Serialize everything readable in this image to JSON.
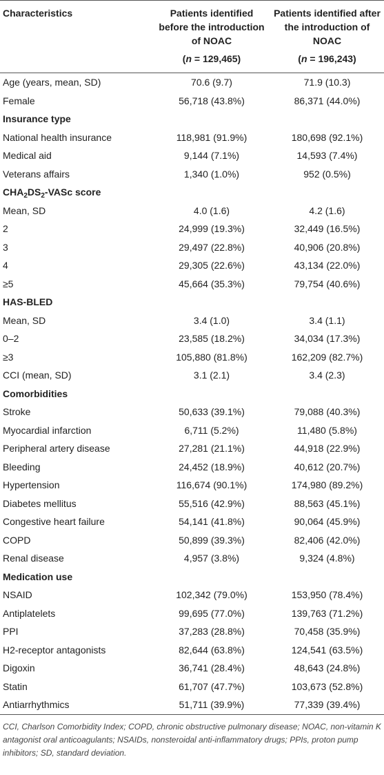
{
  "table": {
    "header": {
      "characteristics": "Characteristics",
      "before": {
        "title": "Patients identified before the introduction of NOAC",
        "n_open": "(",
        "n_var": "n",
        "n_rest": " = 129,465)"
      },
      "after": {
        "title": "Patients identified after the introduction of NOAC",
        "n_open": "(",
        "n_var": "n",
        "n_rest": " = 196,243)"
      }
    },
    "rows": [
      {
        "label": "Age (years, mean, SD)",
        "before": "70.6 (9.7)",
        "after": "71.9 (10.3)"
      },
      {
        "label": "Female",
        "before": "56,718 (43.8%)",
        "after": "86,371 (44.0%)"
      },
      {
        "section": "Insurance type"
      },
      {
        "label": "National health insurance",
        "before": "118,981 (91.9%)",
        "after": "180,698 (92.1%)"
      },
      {
        "label": "Medical aid",
        "before": "9,144 (7.1%)",
        "after": "14,593 (7.4%)"
      },
      {
        "label": "Veterans affairs",
        "before": "1,340 (1.0%)",
        "after": "952 (0.5%)"
      },
      {
        "section_parts": [
          "CHA",
          "2",
          "DS",
          "2",
          "-VASc score"
        ]
      },
      {
        "label": "Mean, SD",
        "before": "4.0 (1.6)",
        "after": "4.2 (1.6)"
      },
      {
        "label": "2",
        "before": "24,999 (19.3%)",
        "after": "32,449 (16.5%)"
      },
      {
        "label": "3",
        "before": "29,497 (22.8%)",
        "after": "40,906 (20.8%)"
      },
      {
        "label": "4",
        "before": "29,305 (22.6%)",
        "after": "43,134 (22.0%)"
      },
      {
        "label": "≥5",
        "before": "45,664 (35.3%)",
        "after": "79,754 (40.6%)"
      },
      {
        "section": "HAS-BLED"
      },
      {
        "label": "Mean, SD",
        "before": "3.4 (1.0)",
        "after": "3.4 (1.1)"
      },
      {
        "label": "0–2",
        "before": "23,585 (18.2%)",
        "after": "34,034 (17.3%)"
      },
      {
        "label": "≥3",
        "before": "105,880 (81.8%)",
        "after": "162,209 (82.7%)"
      },
      {
        "label": "CCI (mean, SD)",
        "before": "3.1 (2.1)",
        "after": "3.4 (2.3)"
      },
      {
        "section": "Comorbidities"
      },
      {
        "label": "Stroke",
        "before": "50,633 (39.1%)",
        "after": "79,088 (40.3%)"
      },
      {
        "label": "Myocardial infarction",
        "before": "6,711 (5.2%)",
        "after": "11,480 (5.8%)"
      },
      {
        "label": "Peripheral artery disease",
        "before": "27,281 (21.1%)",
        "after": "44,918 (22.9%)"
      },
      {
        "label": "Bleeding",
        "before": "24,452 (18.9%)",
        "after": "40,612 (20.7%)"
      },
      {
        "label": "Hypertension",
        "before": "116,674 (90.1%)",
        "after": "174,980 (89.2%)"
      },
      {
        "label": "Diabetes mellitus",
        "before": "55,516 (42.9%)",
        "after": "88,563 (45.1%)"
      },
      {
        "label": "Congestive heart failure",
        "before": "54,141 (41.8%)",
        "after": "90,064 (45.9%)"
      },
      {
        "label": "COPD",
        "before": "50,899 (39.3%)",
        "after": "82,406 (42.0%)"
      },
      {
        "label": "Renal disease",
        "before": "4,957 (3.8%)",
        "after": "9,324 (4.8%)"
      },
      {
        "section": "Medication use"
      },
      {
        "label": "NSAID",
        "before": "102,342 (79.0%)",
        "after": "153,950 (78.4%)"
      },
      {
        "label": "Antiplatelets",
        "before": "99,695 (77.0%)",
        "after": "139,763 (71.2%)"
      },
      {
        "label": "PPI",
        "before": "37,283 (28.8%)",
        "after": "70,458 (35.9%)"
      },
      {
        "label": "H2-receptor antagonists",
        "before": "82,644 (63.8%)",
        "after": "124,541 (63.5%)"
      },
      {
        "label": "Digoxin",
        "before": "36,741 (28.4%)",
        "after": "48,643 (24.8%)"
      },
      {
        "label": "Statin",
        "before": "61,707 (47.7%)",
        "after": "103,673 (52.8%)"
      },
      {
        "label": "Antiarrhythmics",
        "before": "51,711 (39.9%)",
        "after": "77,339 (39.4%)"
      }
    ],
    "footnote": "CCI, Charlson Comorbidity Index; COPD, chronic obstructive pulmonary disease; NOAC, non-vitamin K antagonist oral anticoagulants; NSAIDs, nonsteroidal anti-inflammatory drugs; PPIs, proton pump inhibitors; SD, standard deviation."
  }
}
